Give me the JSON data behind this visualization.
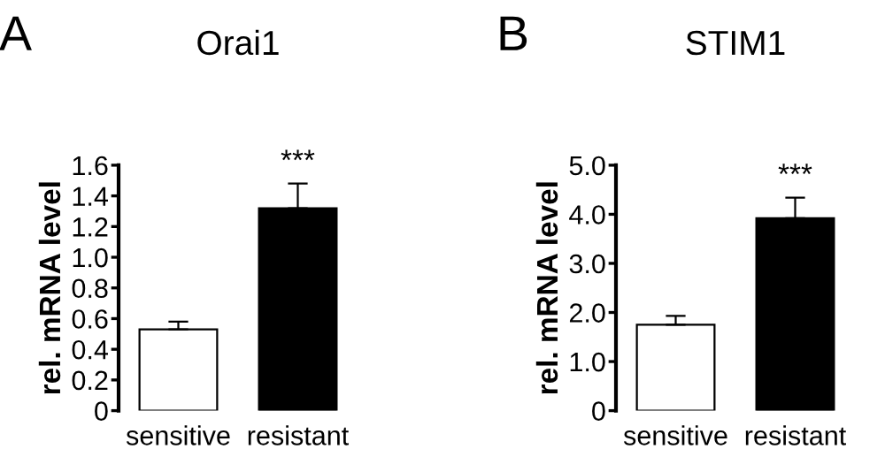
{
  "chart_data": [
    {
      "type": "bar",
      "title": "Orai1",
      "ylabel": "rel. mRNA level",
      "categories": [
        "sensitive",
        "resistant"
      ],
      "values": [
        0.53,
        1.32
      ],
      "errors": [
        [
          0.53,
          0.58
        ],
        [
          1.32,
          1.48
        ]
      ],
      "colors": [
        "#ffffff",
        "#000000"
      ],
      "ylim": [
        0,
        1.6
      ],
      "yticks": [
        0,
        {
          "value": 0.2,
          "label": "0.2"
        },
        {
          "value": 0.4,
          "label": "0.4"
        },
        {
          "value": 0.6,
          "label": "0.6"
        },
        {
          "value": 0.8,
          "label": "0.8"
        },
        {
          "value": 1.0,
          "label": "1.0"
        },
        {
          "value": 1.2,
          "label": "1.2"
        },
        {
          "value": 1.4,
          "label": "1.4"
        },
        {
          "value": 1.6,
          "label": "1.6"
        }
      ],
      "grid": false,
      "annotations": [
        "A",
        {
          "text": "***",
          "x": "resistant",
          "y": 1.48
        }
      ]
    },
    {
      "type": "bar",
      "title": "STIM1",
      "ylabel": "rel. mRNA level",
      "categories": [
        "sensitive",
        "resistant"
      ],
      "values": [
        1.75,
        3.92
      ],
      "errors": [
        [
          1.75,
          1.93
        ],
        [
          3.92,
          4.34
        ]
      ],
      "colors": [
        "#ffffff",
        "#000000"
      ],
      "ylim": [
        0,
        5.0
      ],
      "yticks": [
        0,
        {
          "value": 1.0,
          "label": "1.0"
        },
        {
          "value": 2.0,
          "label": "2.0"
        },
        {
          "value": 3.0,
          "label": "3.0"
        },
        {
          "value": 4.0,
          "label": "4.0"
        },
        {
          "value": 5.0,
          "label": "5.0"
        }
      ],
      "grid": false,
      "annotations": [
        "B",
        {
          "text": "***",
          "x": "resistant",
          "y": 4.34
        }
      ]
    }
  ]
}
